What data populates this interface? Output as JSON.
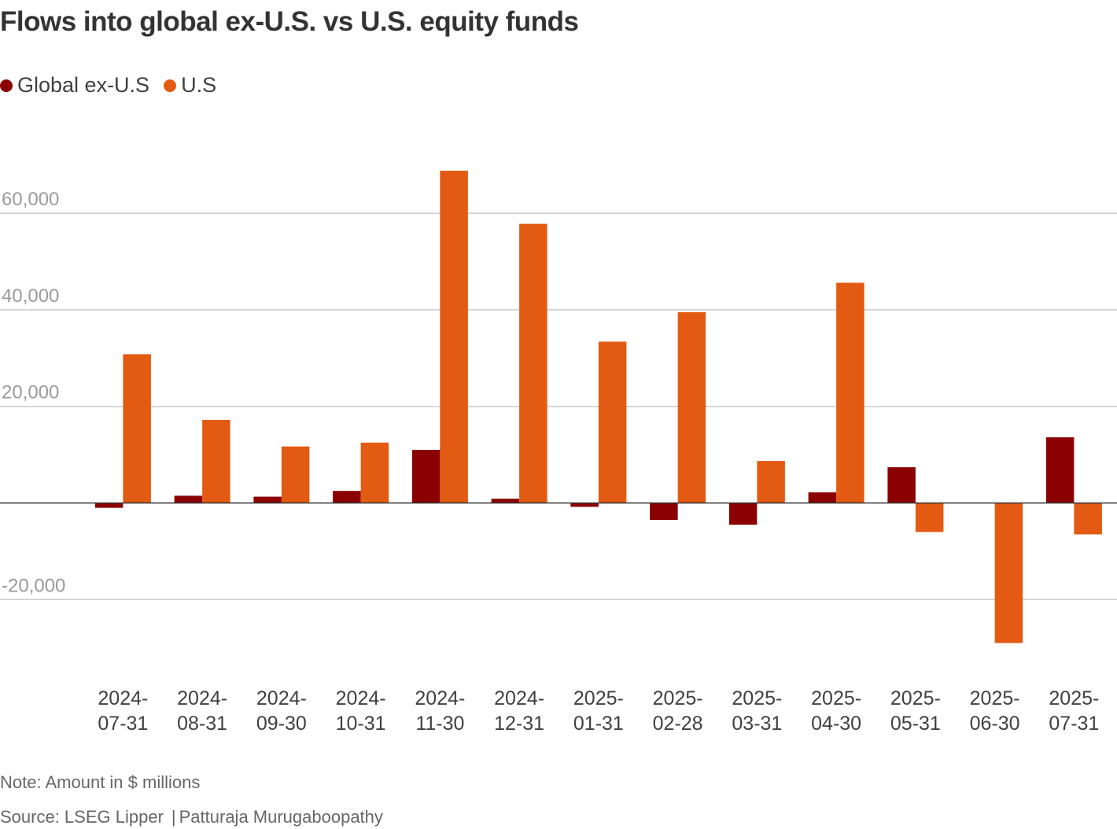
{
  "chart_data": {
    "type": "bar",
    "title": "Flows into global ex-U.S. vs U.S. equity funds",
    "categories": [
      [
        "2024-",
        "07-31"
      ],
      [
        "2024-",
        "08-31"
      ],
      [
        "2024-",
        "09-30"
      ],
      [
        "2024-",
        "10-31"
      ],
      [
        "2024-",
        "11-30"
      ],
      [
        "2024-",
        "12-31"
      ],
      [
        "2025-",
        "01-31"
      ],
      [
        "2025-",
        "02-28"
      ],
      [
        "2025-",
        "03-31"
      ],
      [
        "2025-",
        "04-30"
      ],
      [
        "2025-",
        "05-31"
      ],
      [
        "2025-",
        "06-30"
      ],
      [
        "2025-",
        "07-31"
      ]
    ],
    "series": [
      {
        "name": "Global ex-U.S",
        "color": "#8b0000",
        "values": [
          -1000,
          1500,
          1300,
          2500,
          11000,
          900,
          -800,
          -3500,
          -4500,
          2200,
          7400,
          0,
          13600
        ]
      },
      {
        "name": "U.S",
        "color": "#e35a12",
        "values": [
          30800,
          17200,
          11700,
          12500,
          68800,
          57800,
          33400,
          39500,
          8700,
          45600,
          -6000,
          -29000,
          -6500
        ]
      }
    ],
    "ylim": [
      -30000,
      70000
    ],
    "yticks": [
      -20000,
      0,
      20000,
      40000,
      60000
    ],
    "ytick_labels": [
      "-20,000",
      "",
      "20,000",
      "40,000",
      "60,000"
    ],
    "xlabel": "",
    "ylabel": "",
    "legend": "top-left"
  },
  "footer": {
    "note": "Note: Amount in $ millions",
    "source": "Source: LSEG Lipper",
    "separator": "|",
    "author": "Patturaja Murugaboopathy"
  }
}
